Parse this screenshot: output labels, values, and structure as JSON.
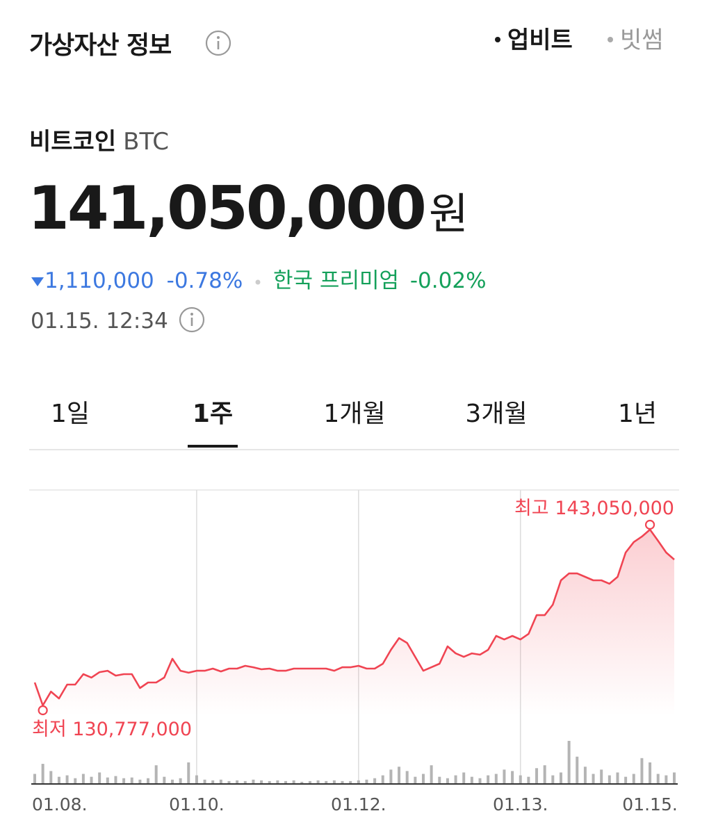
{
  "header": {
    "title": "가상자산 정보",
    "exchanges": [
      "업비트",
      "빗썸"
    ],
    "selected_exchange": 0
  },
  "asset": {
    "name": "비트코인",
    "symbol": "BTC",
    "price": "141,050,000",
    "unit": "원",
    "change": "1,110,000",
    "change_pct": "-0.78%",
    "premium_label": "한국 프리미엄",
    "premium": "-0.02%",
    "time": "01.15. 12:34"
  },
  "tabs": {
    "items": [
      "1일",
      "1주",
      "1개월",
      "3개월",
      "1년"
    ],
    "active": 1
  },
  "chart_data": {
    "type": "line",
    "color": "#f04452",
    "volume_color": "#b4b4b4",
    "high_label": "최고 143,050,000",
    "low_label": "최저 130,777,000",
    "categories": [
      "01.08.",
      null,
      null,
      null,
      null,
      null,
      null,
      null,
      null,
      null,
      null,
      null,
      null,
      null,
      null,
      null,
      null,
      null,
      null,
      null,
      "01.10.",
      null,
      null,
      null,
      null,
      null,
      null,
      null,
      null,
      null,
      null,
      null,
      null,
      null,
      null,
      null,
      null,
      null,
      null,
      null,
      "01.12.",
      null,
      null,
      null,
      null,
      null,
      null,
      null,
      null,
      null,
      null,
      null,
      null,
      null,
      null,
      null,
      null,
      null,
      null,
      null,
      "01.13.",
      null,
      null,
      null,
      null,
      null,
      null,
      null,
      null,
      null,
      null,
      null,
      null,
      null,
      null,
      null,
      "01.15.",
      null,
      null,
      null
    ],
    "values": [
      132380000,
      130777000,
      131740000,
      131260000,
      132230000,
      132230000,
      132960000,
      132720000,
      133100000,
      133200000,
      132860000,
      132960000,
      132960000,
      131990000,
      132380000,
      132380000,
      132720000,
      134030000,
      133200000,
      133060000,
      133200000,
      133200000,
      133350000,
      133150000,
      133350000,
      133350000,
      133540000,
      133440000,
      133300000,
      133350000,
      133200000,
      133200000,
      133350000,
      133350000,
      133350000,
      133350000,
      133350000,
      133200000,
      133440000,
      133440000,
      133540000,
      133350000,
      133350000,
      133690000,
      134660000,
      135480000,
      135140000,
      134170000,
      133200000,
      133440000,
      133690000,
      134900000,
      134410000,
      134170000,
      134410000,
      134320000,
      134660000,
      135630000,
      135380000,
      135630000,
      135380000,
      135770000,
      137080000,
      137080000,
      137810000,
      139510000,
      139990000,
      139990000,
      139750000,
      139510000,
      139510000,
      139270000,
      139750000,
      141450000,
      142180000,
      142560000,
      143050000,
      142270000,
      141450000,
      140960000
    ],
    "volume": [
      14,
      28,
      18,
      10,
      12,
      8,
      14,
      10,
      16,
      9,
      11,
      8,
      9,
      6,
      8,
      26,
      10,
      6,
      8,
      30,
      12,
      6,
      5,
      6,
      4,
      5,
      4,
      6,
      5,
      4,
      5,
      4,
      5,
      3,
      4,
      5,
      4,
      5,
      4,
      4,
      5,
      6,
      8,
      12,
      20,
      24,
      18,
      10,
      14,
      26,
      10,
      8,
      12,
      16,
      10,
      8,
      12,
      14,
      20,
      18,
      12,
      10,
      22,
      26,
      12,
      16,
      60,
      38,
      24,
      14,
      20,
      12,
      16,
      10,
      14,
      36,
      30,
      14,
      12,
      16
    ]
  }
}
